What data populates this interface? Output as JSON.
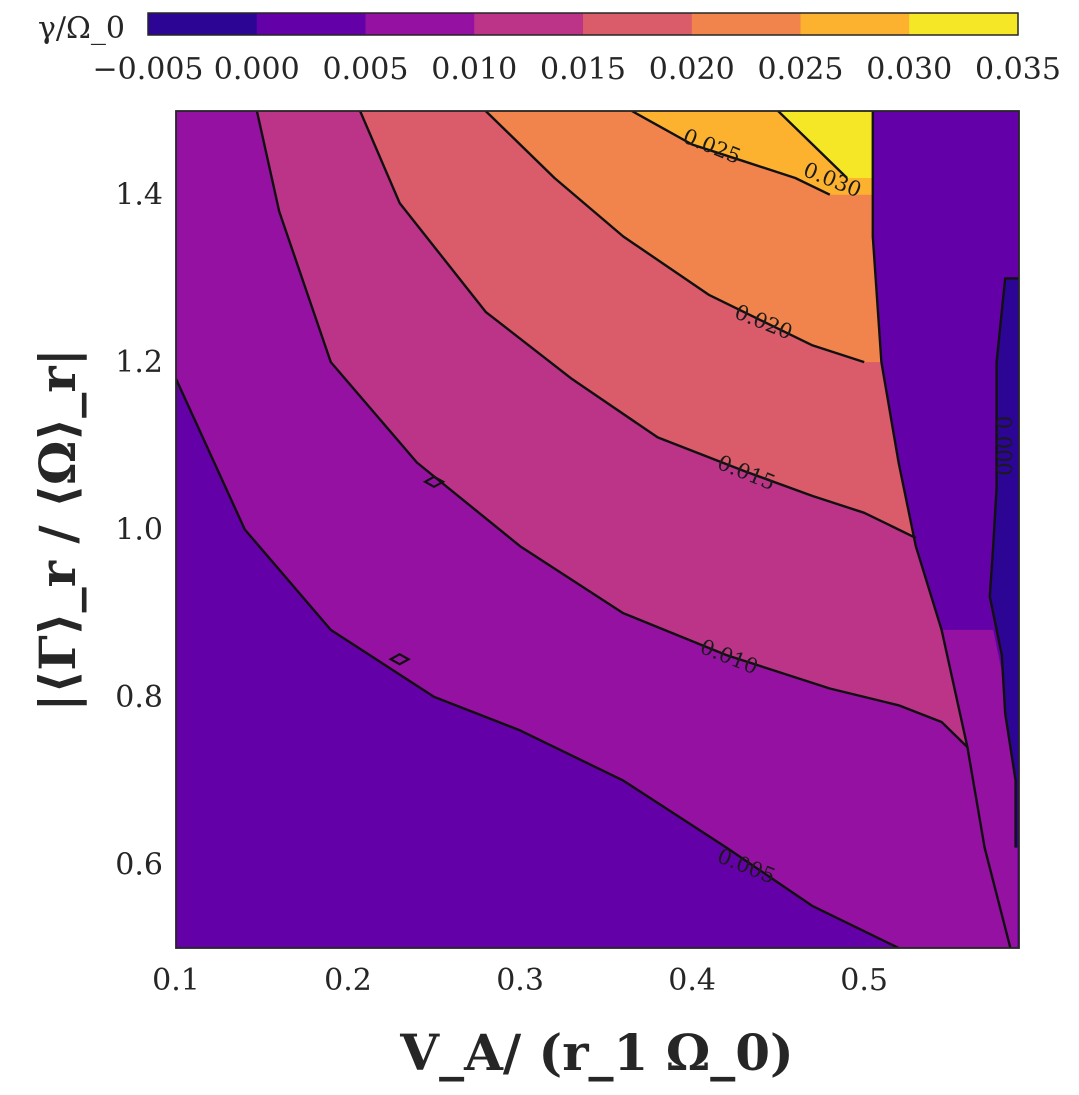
{
  "chart_data": {
    "type": "contourf",
    "title": "",
    "xlabel": "V_A/ (r_1 Ω_0)",
    "ylabel": "|⟨Γ⟩_r / ⟨Ω⟩_r|",
    "colorbar_label": "γ/Ω_0",
    "colorbar_ticks": [
      "−0.005",
      "0.000",
      "0.005",
      "0.010",
      "0.015",
      "0.020",
      "0.025",
      "0.030",
      "0.035"
    ],
    "levels": [
      -0.005,
      0.0,
      0.005,
      0.01,
      0.015,
      0.02,
      0.025,
      0.03,
      0.035
    ],
    "level_colors": [
      "#2c0594",
      "#6400a7",
      "#9511a1",
      "#bb3488",
      "#da5b69",
      "#f1834c",
      "#fdb22f",
      "#f6e726"
    ],
    "xlim": [
      0.1,
      0.59
    ],
    "ylim": [
      0.5,
      1.5
    ],
    "x_ticks": [
      "0.1",
      "0.2",
      "0.3",
      "0.4",
      "0.5"
    ],
    "y_ticks": [
      "0.6",
      "0.8",
      "1.0",
      "1.2",
      "1.4"
    ],
    "contour_labels": [
      {
        "text": "0.005",
        "x": 0.43,
        "y": 0.59
      },
      {
        "text": "0.010",
        "x": 0.42,
        "y": 0.84
      },
      {
        "text": "0.015",
        "x": 0.43,
        "y": 1.06
      },
      {
        "text": "0.020",
        "x": 0.44,
        "y": 1.24
      },
      {
        "text": "0.025",
        "x": 0.41,
        "y": 1.45
      },
      {
        "text": "0.030",
        "x": 0.48,
        "y": 1.41
      },
      {
        "text": "0.000",
        "x": 0.577,
        "y": 1.1
      }
    ]
  }
}
